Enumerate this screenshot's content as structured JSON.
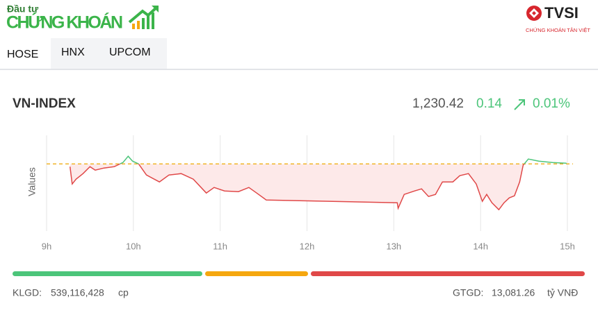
{
  "header": {
    "brand_top": "Đầu tư",
    "brand": "CHỨNG KHOÁN",
    "partner": "TVSI",
    "partner_sub": "CHỨNG KHOÁN TÂN VIỆT"
  },
  "tabs": [
    "HOSE",
    "HNX",
    "UPCOM"
  ],
  "index": {
    "name": "VN-INDEX",
    "value": "1,230.42",
    "change": "0.14",
    "percent": "0.01%"
  },
  "chart_data": {
    "type": "line",
    "y_label": "Values",
    "x": [
      9.27,
      9.295,
      9.34,
      9.42,
      9.5,
      9.56,
      9.66,
      9.78,
      9.88,
      9.94,
      9.99,
      10.06,
      10.15,
      10.3,
      10.41,
      10.55,
      10.69,
      10.84,
      10.93,
      11.05,
      11.21,
      11.33,
      11.42,
      11.53,
      13.04,
      13.05,
      13.12,
      13.24,
      13.32,
      13.4,
      13.48,
      13.56,
      13.68,
      13.76,
      13.86,
      13.95,
      14.02,
      14.07,
      14.13,
      14.21,
      14.27,
      14.33,
      14.39,
      14.45,
      14.49,
      14.55,
      14.67,
      14.83,
      14.99
    ],
    "values": [
      1229.88,
      1227.38,
      1228.08,
      1228.88,
      1229.88,
      1229.38,
      1229.68,
      1229.88,
      1230.48,
      1231.38,
      1230.68,
      1230.28,
      1228.68,
      1227.68,
      1228.68,
      1228.88,
      1228.08,
      1226.08,
      1226.88,
      1226.38,
      1226.28,
      1226.88,
      1226.08,
      1225.08,
      1224.68,
      1223.88,
      1225.88,
      1226.38,
      1226.68,
      1225.58,
      1225.88,
      1227.68,
      1227.68,
      1228.58,
      1228.88,
      1227.38,
      1224.88,
      1225.88,
      1224.68,
      1223.68,
      1224.68,
      1225.38,
      1225.68,
      1227.68,
      1230.08,
      1230.98,
      1230.68,
      1230.48,
      1230.38
    ],
    "reference": 1230.28,
    "reference_color": "#f0b429",
    "up_color": "#4cc57a",
    "down_color": "#e04848",
    "fill_color": "#fde9e9",
    "xlim": [
      9,
      15
    ],
    "ylim": [
      1220.4,
      1234.4
    ],
    "xticks": [
      {
        "value": 9,
        "label": "9h"
      },
      {
        "value": 10,
        "label": "10h"
      },
      {
        "value": 11,
        "label": "11h"
      },
      {
        "value": 12,
        "label": "12h"
      },
      {
        "value": 13,
        "label": "13h"
      },
      {
        "value": 14,
        "label": "14h"
      },
      {
        "value": 15,
        "label": "15h"
      }
    ],
    "grid": true
  },
  "breadth": {
    "values": [
      273,
      148,
      394
    ],
    "colors": [
      "#4cc57a",
      "#f5a70f",
      "#e04848"
    ]
  },
  "footer": {
    "volume_label": "KLGD:",
    "volume": "539,116,428",
    "volume_unit": "cp",
    "value_label": "GTGD:",
    "value": "13,081.26",
    "value_unit": "tỷ VNĐ"
  }
}
